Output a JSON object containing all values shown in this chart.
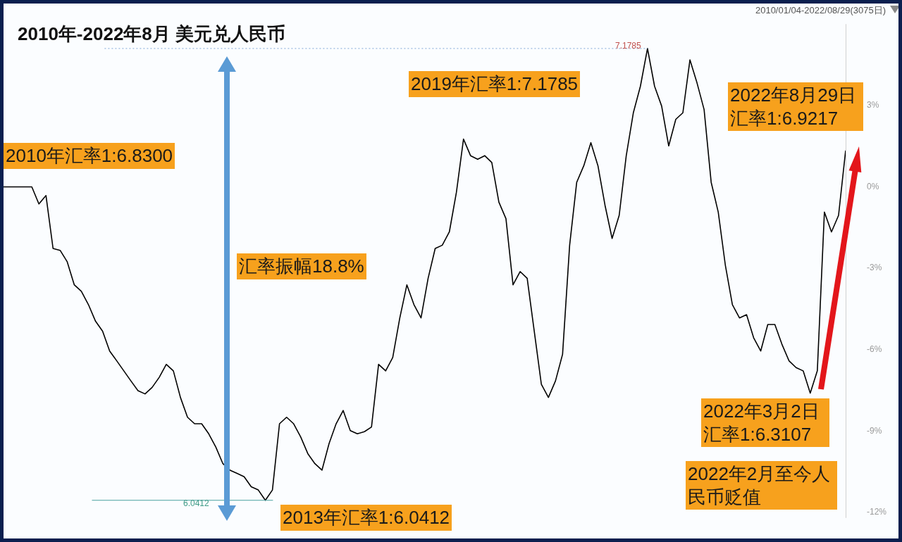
{
  "chart_data": {
    "type": "line",
    "title": "2010年-2022年8月 美元兑人民币",
    "annotations": [
      "2010/01/04-2022/08/29(3075日)",
      "2010年汇率1:6.8300",
      "汇率振幅18.8%",
      "2019年汇率1:7.1785",
      "2022年8月29日汇率1:6.9217",
      "2022年3月2日汇率1:6.3107",
      "2022年2月至今人民币贬值",
      "2013年汇率1:6.0412",
      {
        "text": "7.1785",
        "y": 5.1
      },
      {
        "text": "6.0412",
        "y": -11.55
      }
    ],
    "categories": [
      null,
      null,
      null,
      null,
      null,
      null,
      null,
      null,
      null,
      null,
      null,
      null,
      null,
      null,
      null,
      null,
      null,
      null,
      null,
      null,
      null,
      null,
      null,
      null,
      null,
      null,
      null,
      null,
      null,
      null,
      null,
      null,
      null,
      null,
      null,
      null,
      null,
      null,
      null,
      null,
      null,
      null,
      null,
      null,
      null,
      null,
      null,
      null,
      null,
      null,
      null,
      null,
      null,
      null,
      null,
      null,
      null,
      null,
      null,
      null,
      null,
      null,
      null,
      null,
      null,
      null,
      null,
      null,
      null,
      null,
      null,
      null,
      null,
      null,
      null,
      null,
      null,
      null,
      null,
      null,
      null,
      null,
      null,
      null,
      null,
      null,
      null,
      null,
      null,
      null,
      null,
      null,
      null,
      null,
      null,
      null,
      null,
      null,
      null,
      null,
      null,
      null,
      null,
      null,
      null,
      null,
      null,
      null,
      null,
      null,
      null,
      null,
      null,
      null,
      null,
      null,
      null,
      null,
      null,
      null
    ],
    "series": [
      {
        "color": "#000000",
        "values": [
          0,
          0,
          0,
          0,
          0,
          -0.63,
          -0.32,
          -2.27,
          -2.34,
          -2.76,
          -3.61,
          -3.85,
          -4.34,
          -4.95,
          -5.32,
          -6.05,
          -6.41,
          -6.78,
          -7.15,
          -7.51,
          -7.63,
          -7.39,
          -7.02,
          -6.54,
          -6.78,
          -7.76,
          -8.49,
          -8.73,
          -8.73,
          -9.1,
          -9.59,
          -10.2,
          -10.44,
          -10.56,
          -10.68,
          -11.05,
          -11.17,
          -11.55,
          -11.17,
          -8.73,
          -8.49,
          -8.73,
          -9.22,
          -9.83,
          -10.2,
          -10.44,
          -9.46,
          -8.73,
          -8.24,
          -8.98,
          -9.1,
          -9.02,
          -8.85,
          -6.54,
          -6.78,
          -6.29,
          -4.83,
          -3.61,
          -4.34,
          -4.83,
          -3.37,
          -2.27,
          -2.15,
          -1.66,
          -0.2,
          1.76,
          1.15,
          1.02,
          1.15,
          0.9,
          -0.56,
          -1.17,
          -3.61,
          -3.12,
          -3.37,
          -5.32,
          -7.27,
          -7.76,
          -7.15,
          -6.17,
          -2.15,
          0.17,
          0.78,
          1.63,
          0.78,
          -0.68,
          -1.9,
          -1.05,
          1.15,
          2.73,
          3.71,
          5.1,
          3.71,
          2.98,
          1.51,
          2.49,
          2.73,
          4.68,
          3.83,
          2.85,
          0.17,
          -0.93,
          -2.88,
          -4.34,
          -4.83,
          -4.71,
          -5.56,
          -6.05,
          -5.07,
          -5.07,
          -5.8,
          -6.41,
          -6.66,
          -6.78,
          -7.6,
          -6.78,
          -0.93,
          -1.66,
          -1.05,
          1.34
        ]
      }
    ],
    "ylim": [
      -12.2,
      6
    ],
    "yticks": [
      {
        "value": 3,
        "label": "3%"
      },
      {
        "value": 0,
        "label": "0%"
      },
      {
        "value": -3,
        "label": "-3%"
      },
      {
        "value": -6,
        "label": "-6%"
      },
      {
        "value": -9,
        "label": "-9%"
      },
      {
        "value": -12,
        "label": "-12%"
      }
    ],
    "ref_lines": [
      {
        "axis": "y",
        "value": 5.1,
        "color": "#7fa7d6",
        "line_style": "dotted"
      },
      {
        "axis": "y",
        "value": -11.55,
        "color": "#4aa3a0",
        "line_style": "solid"
      }
    ],
    "tick_labels": "y",
    "marker": "none",
    "line_style": "solid"
  }
}
